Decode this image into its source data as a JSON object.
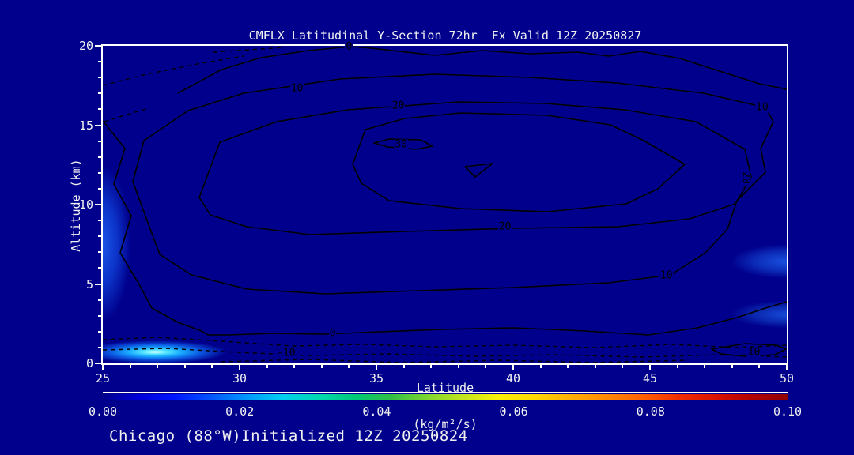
{
  "title": "CMFLX Latitudinal Y-Section 72hr  Fx Valid 12Z 20250827",
  "footer": "Chicago (88°W)Initialized 12Z 20250824",
  "colors": {
    "background": "#00008C",
    "axis": "#FFFFFF",
    "text": "#F2F2F2",
    "contour": "#000000"
  },
  "chart_data": {
    "type": "heatmap",
    "subtype": "filled-contour-cross-section-with-line-contours",
    "title": "CMFLX Latitudinal Y-Section 72hr  Fx Valid 12Z 20250827",
    "xlabel": "Latitude",
    "ylabel": "Altitude (km)",
    "xlim": [
      25,
      50
    ],
    "ylim": [
      0,
      20
    ],
    "x_ticks": [
      25,
      30,
      35,
      40,
      45,
      50
    ],
    "x_minor_step": 1,
    "y_ticks": [
      0,
      5,
      10,
      15,
      20
    ],
    "y_minor_step": 1,
    "grid": false,
    "contour_levels_labeled": [
      -10,
      0,
      10,
      20,
      30
    ],
    "negative_contours_dashed": true,
    "contour_line_labels": [
      {
        "text": "0",
        "lat": 34.0,
        "alt": 19.95,
        "rotate": 0
      },
      {
        "text": "10",
        "lat": 32.1,
        "alt": 17.3,
        "rotate": 0
      },
      {
        "text": "20",
        "lat": 35.8,
        "alt": 16.2,
        "rotate": 0
      },
      {
        "text": "30",
        "lat": 35.9,
        "alt": 13.8,
        "rotate": 0
      },
      {
        "text": "20",
        "lat": 39.7,
        "alt": 8.6,
        "rotate": 0
      },
      {
        "text": "0",
        "lat": 33.4,
        "alt": 1.9,
        "rotate": 0
      },
      {
        "text": "-10",
        "lat": 31.7,
        "alt": 0.65,
        "rotate": 0
      },
      {
        "text": "10",
        "lat": 49.1,
        "alt": 16.1,
        "rotate": 0
      },
      {
        "text": "20",
        "lat": 48.5,
        "alt": 11.7,
        "rotate": 90
      },
      {
        "text": "10",
        "lat": 45.6,
        "alt": 5.5,
        "rotate": 0
      },
      {
        "text": "10",
        "lat": 48.8,
        "alt": 0.7,
        "rotate": 0
      }
    ],
    "shaded_maxima": [
      {
        "lat": 26.8,
        "alt": 0.6,
        "value_approx": 0.045,
        "note": "bright cyan near-surface core"
      },
      {
        "lat": 25.1,
        "alt": 9.8,
        "value_approx": 0.02,
        "note": "left-edge mid-level streak"
      },
      {
        "lat": 49.9,
        "alt": 6.0,
        "value_approx": 0.012,
        "note": "right-edge wedge"
      },
      {
        "lat": 49.9,
        "alt": 3.4,
        "value_approx": 0.012,
        "note": "right-edge wedge"
      }
    ],
    "colorbar": {
      "min": 0.0,
      "max": 0.1,
      "tick_labels": [
        "0.00",
        "0.02",
        "0.04",
        "0.06",
        "0.08",
        "0.10"
      ],
      "unit": "(kg/m²/s)",
      "gradient": [
        "#00008C",
        "#0000D8",
        "#0016FF",
        "#0055FF",
        "#0098FF",
        "#00CFEF",
        "#00D8B0",
        "#00C878",
        "#32BE46",
        "#7DD72F",
        "#C3E51E",
        "#FAF206",
        "#FFD800",
        "#FFAE00",
        "#FF8800",
        "#FF5F00",
        "#F22C00",
        "#D81200",
        "#B20000",
        "#8F0000"
      ]
    }
  }
}
